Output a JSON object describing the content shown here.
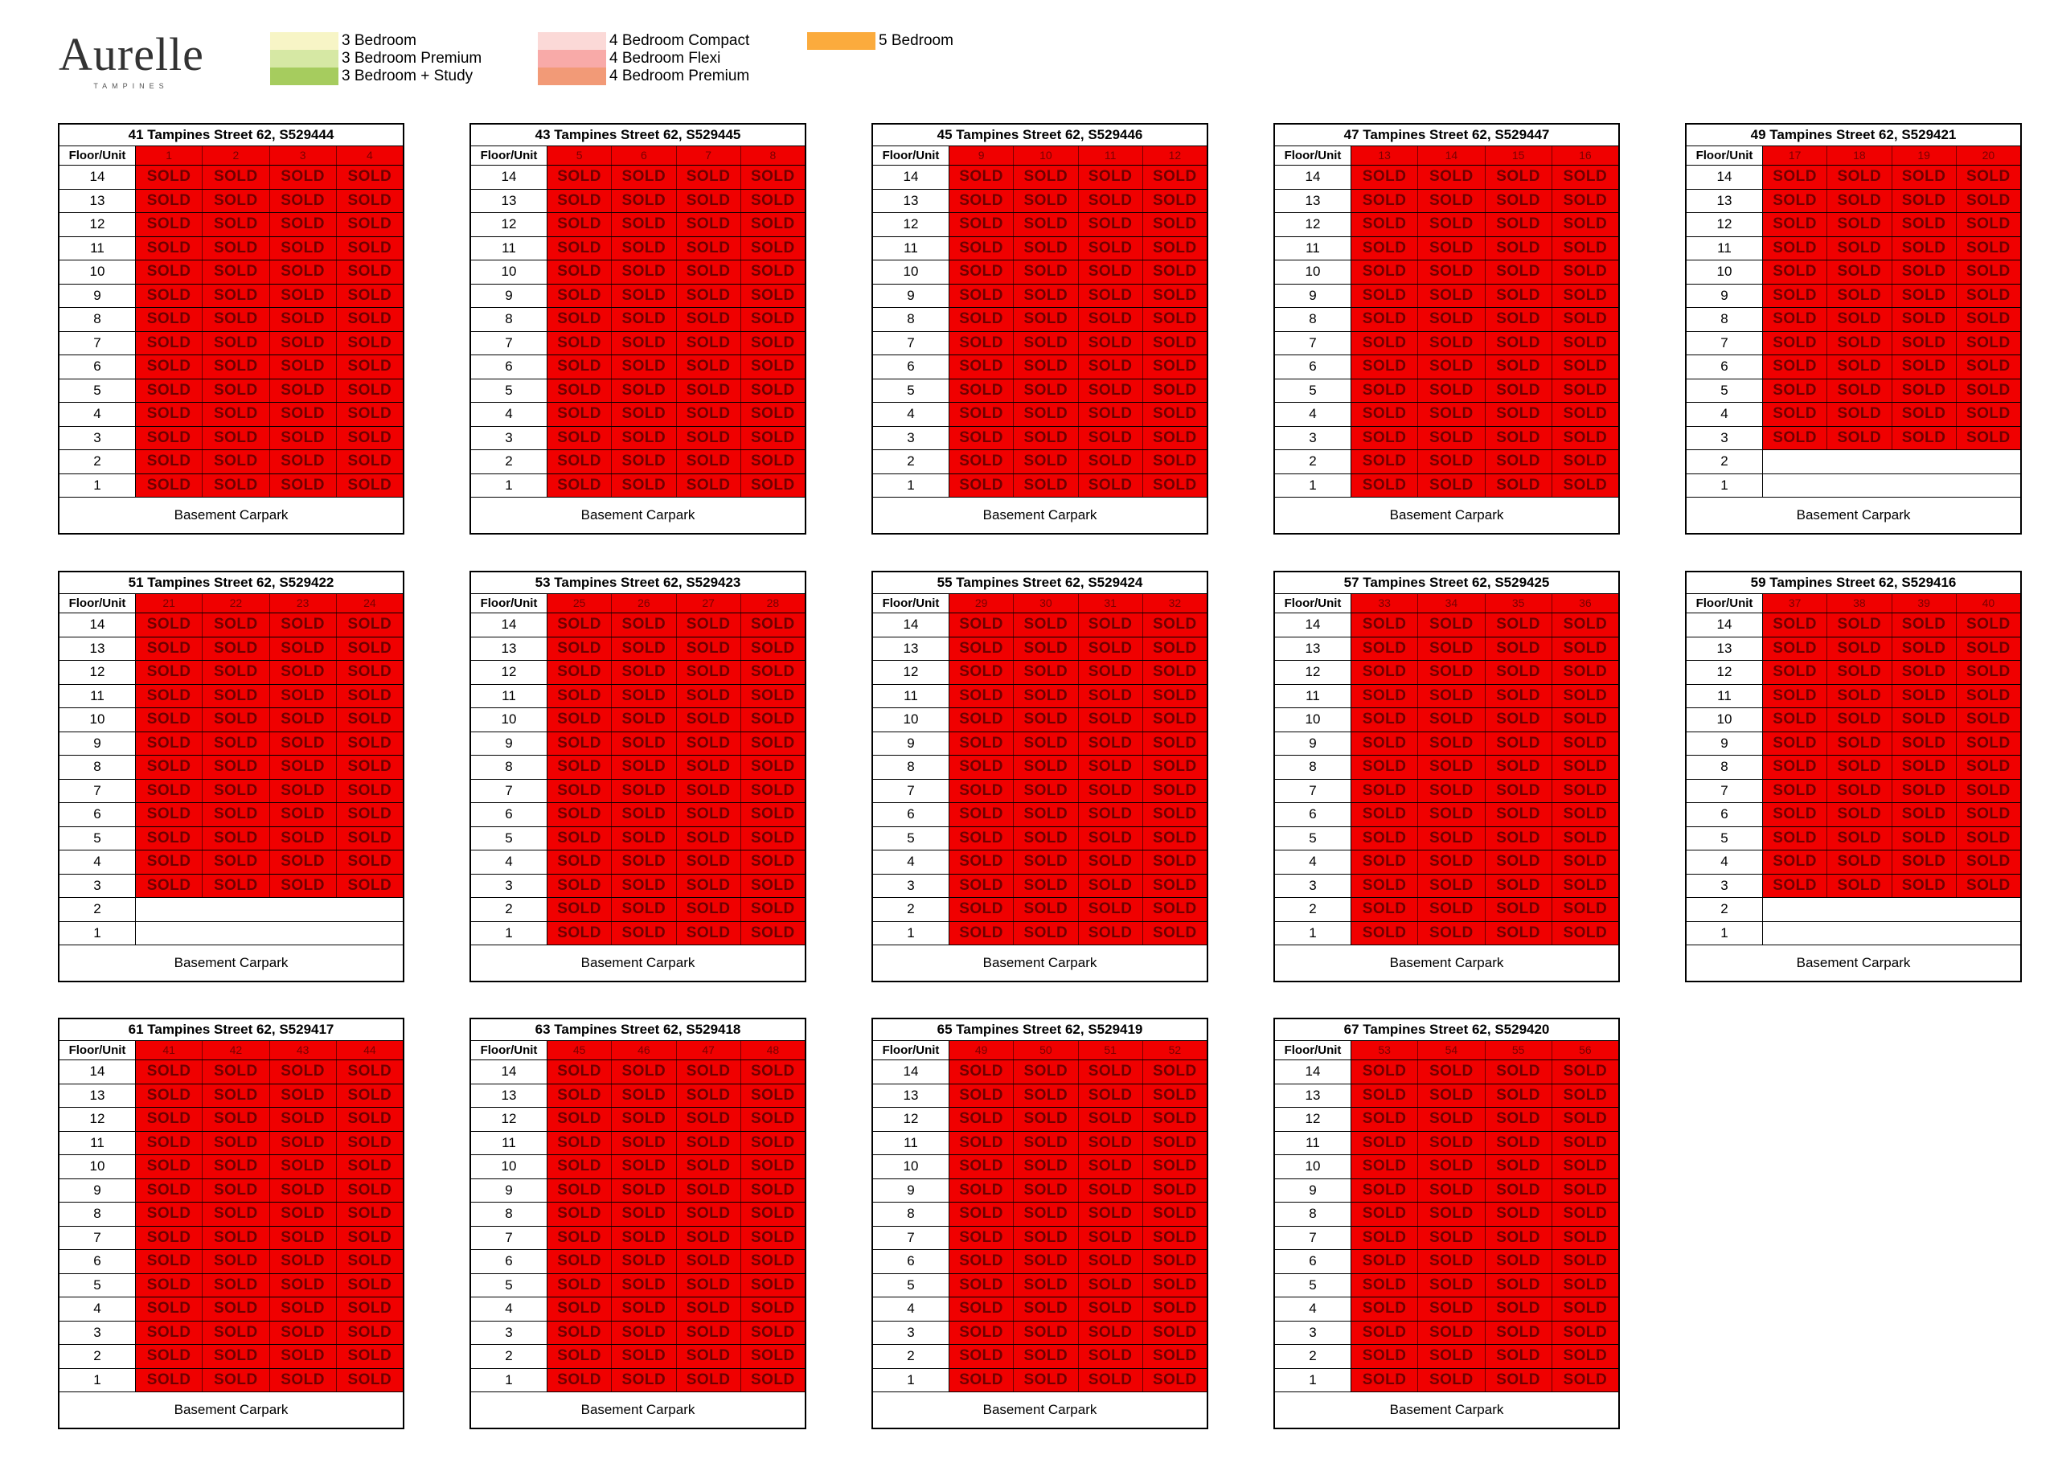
{
  "brand": {
    "name": "Aurelle",
    "sub": "TAMPINES"
  },
  "legend": [
    {
      "label": "3 Bedroom",
      "color": "#f7f5c6"
    },
    {
      "label": "3 Bedroom Premium",
      "color": "#d6e8a4"
    },
    {
      "label": "3 Bedroom + Study",
      "color": "#a6cc5e"
    },
    {
      "label": "4 Bedroom Compact",
      "color": "#fbd9d7"
    },
    {
      "label": "4 Bedroom Flexi",
      "color": "#f8aaa8"
    },
    {
      "label": "4 Bedroom Premium",
      "color": "#f29a77"
    },
    {
      "label": "5 Bedroom",
      "color": "#fbab3d"
    }
  ],
  "colors": {
    "sold": "#f00000"
  },
  "floor_unit_label": "Floor/Unit",
  "carpark_label": "Basement Carpark",
  "sold_label": "SOLD",
  "floors": [
    "14",
    "13",
    "12",
    "11",
    "10",
    "9",
    "8",
    "7",
    "6",
    "5",
    "4",
    "3",
    "2",
    "1"
  ],
  "blocks": [
    {
      "title": "41 Tampines Street 62, S529444",
      "units": [
        "1",
        "2",
        "3",
        "4"
      ],
      "sold_floors": 14
    },
    {
      "title": "43 Tampines Street 62, S529445",
      "units": [
        "5",
        "6",
        "7",
        "8"
      ],
      "sold_floors": 14
    },
    {
      "title": "45 Tampines Street 62, S529446",
      "units": [
        "9",
        "10",
        "11",
        "12"
      ],
      "sold_floors": 14
    },
    {
      "title": "47 Tampines Street 62, S529447",
      "units": [
        "13",
        "14",
        "15",
        "16"
      ],
      "sold_floors": 14
    },
    {
      "title": "49 Tampines Street 62, S529421",
      "units": [
        "17",
        "18",
        "19",
        "20"
      ],
      "sold_floors": 12
    },
    {
      "title": "51 Tampines Street 62, S529422",
      "units": [
        "21",
        "22",
        "23",
        "24"
      ],
      "sold_floors": 12
    },
    {
      "title": "53 Tampines Street 62, S529423",
      "units": [
        "25",
        "26",
        "27",
        "28"
      ],
      "sold_floors": 14
    },
    {
      "title": "55 Tampines Street 62, S529424",
      "units": [
        "29",
        "30",
        "31",
        "32"
      ],
      "sold_floors": 14
    },
    {
      "title": "57 Tampines Street 62, S529425",
      "units": [
        "33",
        "34",
        "35",
        "36"
      ],
      "sold_floors": 14
    },
    {
      "title": "59 Tampines Street 62, S529416",
      "units": [
        "37",
        "38",
        "39",
        "40"
      ],
      "sold_floors": 12
    },
    {
      "title": "61 Tampines Street 62, S529417",
      "units": [
        "41",
        "42",
        "43",
        "44"
      ],
      "sold_floors": 14
    },
    {
      "title": "63 Tampines Street 62, S529418",
      "units": [
        "45",
        "46",
        "47",
        "48"
      ],
      "sold_floors": 14
    },
    {
      "title": "65 Tampines Street 62, S529419",
      "units": [
        "49",
        "50",
        "51",
        "52"
      ],
      "sold_floors": 14
    },
    {
      "title": "67 Tampines Street 62, S529420",
      "units": [
        "53",
        "54",
        "55",
        "56"
      ],
      "sold_floors": 14
    }
  ]
}
